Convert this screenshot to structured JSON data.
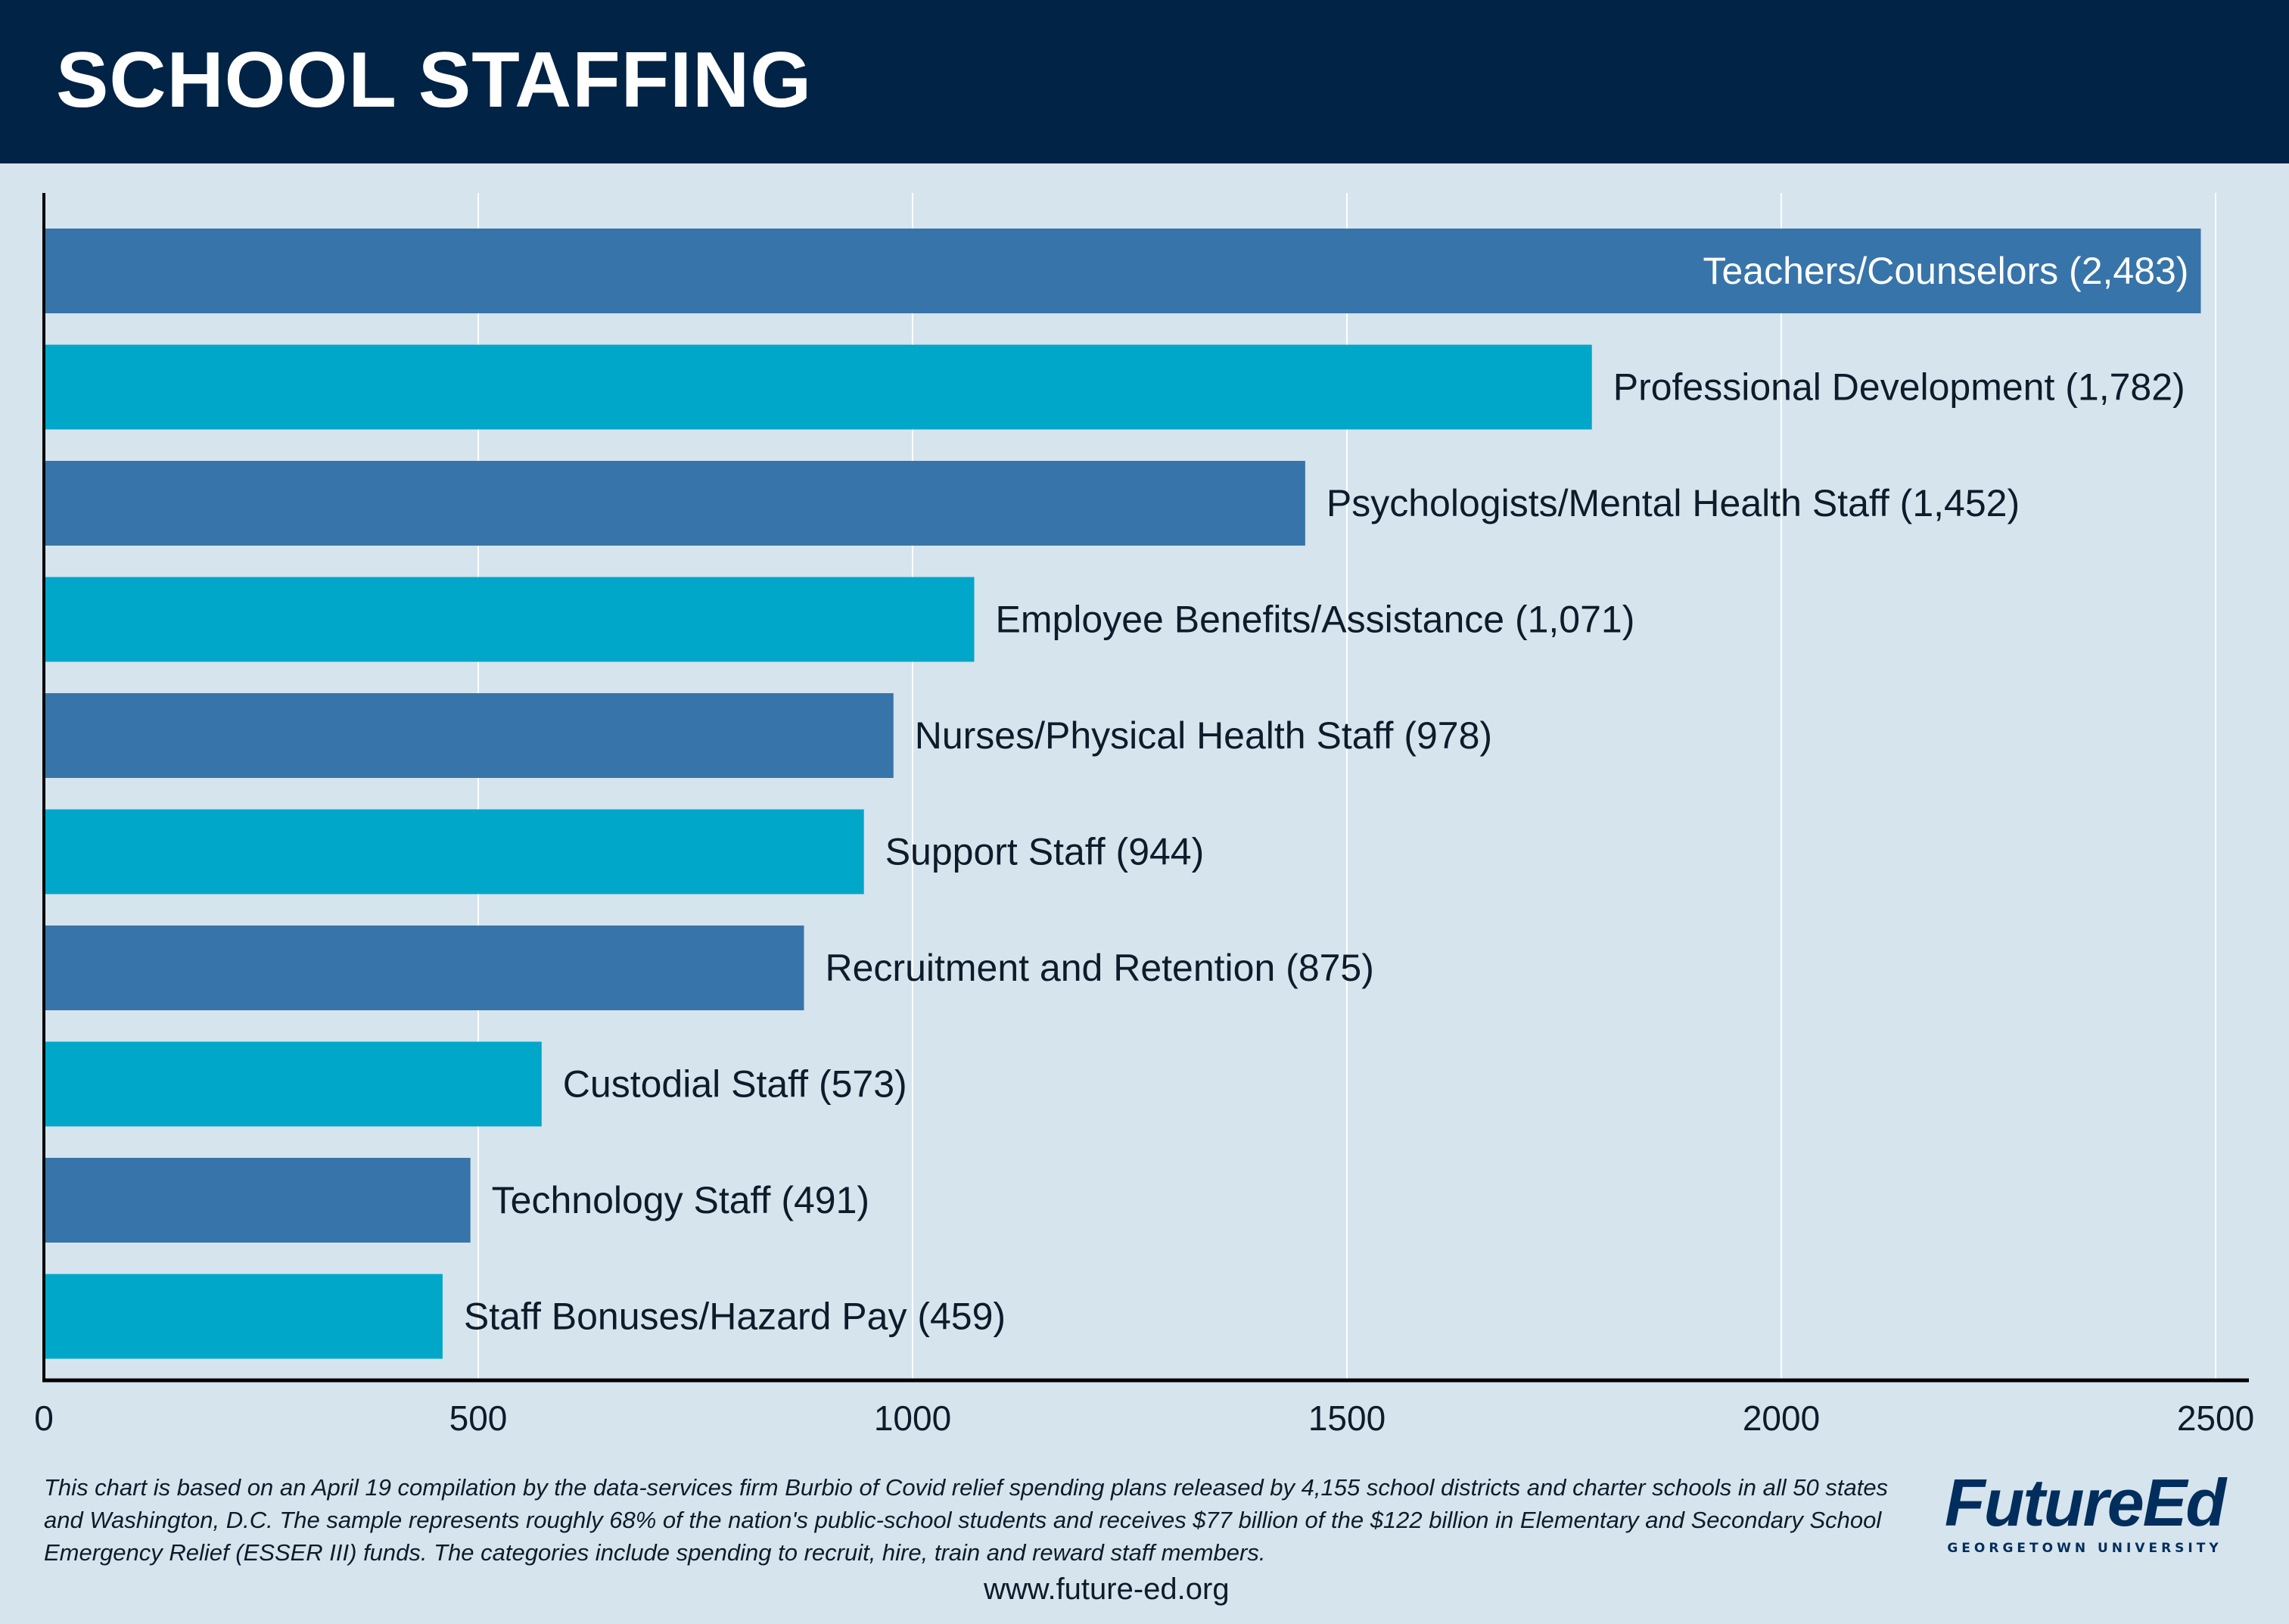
{
  "title": "SCHOOL STAFFING",
  "colors": {
    "header_bg": "#012345",
    "dark_bar": "#3774a9",
    "light_bar": "#01a7c9",
    "background": "#d6e4ee"
  },
  "chart_data": {
    "type": "bar",
    "orientation": "horizontal",
    "title": "SCHOOL STAFFING",
    "xlim": [
      0,
      2500
    ],
    "xticks": [
      0,
      500,
      1000,
      1500,
      2000,
      2500
    ],
    "grid": true,
    "categories": [
      "Teachers/Counselors",
      "Professional Development",
      "Psychologists/Mental Health Staff",
      "Employee Benefits/Assistance",
      "Nurses/Physical Health Staff",
      "Support Staff",
      "Recruitment and Retention",
      "Custodial Staff",
      "Technology Staff",
      "Staff Bonuses/Hazard Pay"
    ],
    "values": [
      2483,
      1782,
      1452,
      1071,
      978,
      944,
      875,
      573,
      491,
      459
    ],
    "labels": [
      "Teachers/Counselors (2,483)",
      "Professional Development (1,782)",
      "Psychologists/Mental Health Staff (1,452)",
      "Employee Benefits/Assistance (1,071)",
      "Nurses/Physical Health Staff (978)",
      "Support Staff (944)",
      "Recruitment and Retention (875)",
      "Custodial Staff (573)",
      "Technology Staff (491)",
      "Staff Bonuses/Hazard Pay (459)"
    ]
  },
  "footnote": "This chart is based on an April 19 compilation by the data-services firm Burbio of Covid relief spending plans released by 4,155 school districts and charter schools in all 50 states and Washington, D.C. The sample represents roughly 68% of the nation's public-school students and receives $77 billion of the $122 billion in Elementary and Secondary School Emergency Relief (ESSER III) funds. The categories include spending to recruit, hire, train and reward staff members.",
  "url": "www.future-ed.org",
  "logo": {
    "name": "FutureEd",
    "subtitle": "GEORGETOWN UNIVERSITY"
  }
}
